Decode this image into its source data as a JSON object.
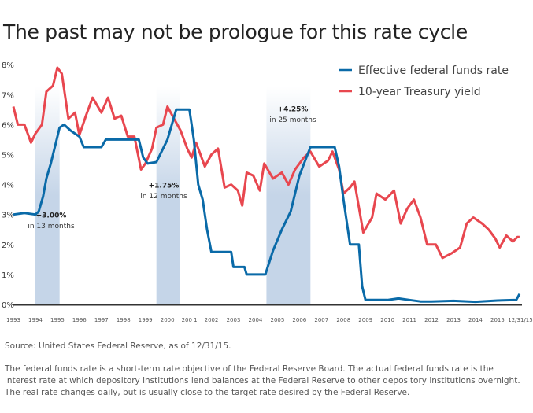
{
  "title": "The past may not be prologue for this rate cycle",
  "chart_data": {
    "type": "line",
    "title": "The past may not be prologue for this rate cycle",
    "xlabel": "",
    "ylabel": "",
    "xlim": [
      1993,
      2016
    ],
    "ylim": [
      0,
      8
    ],
    "y_ticks": [
      "0%",
      "1%",
      "2%",
      "3%",
      "4%",
      "5%",
      "6%",
      "7%",
      "8%"
    ],
    "x_ticks": [
      "1993",
      "1994",
      "1995",
      "1996",
      "1997",
      "1998",
      "1999",
      "2000",
      "200 1",
      "2002",
      "2003",
      "2004",
      "2005",
      "2006",
      "2007",
      "2008",
      "2009",
      "2010",
      "2011",
      "2012",
      "2013",
      "2014",
      "2015",
      "12/31/15"
    ],
    "grid": false,
    "legend_position": "top-right",
    "series": [
      {
        "name": "Effective federal funds rate",
        "color": "#0a6aa8",
        "x": [
          1993.0,
          1993.5,
          1994.0,
          1994.15,
          1994.35,
          1994.5,
          1994.7,
          1994.9,
          1995.1,
          1995.3,
          1995.6,
          1996.0,
          1996.2,
          1996.6,
          1997.0,
          1997.2,
          1997.6,
          1998.0,
          1998.7,
          1998.9,
          1999.1,
          1999.5,
          1999.8,
          2000.0,
          2000.4,
          2001.0,
          2001.2,
          2001.4,
          2001.6,
          2001.8,
          2002.0,
          2002.9,
          2003.0,
          2003.5,
          2003.6,
          2004.45,
          2004.8,
          2005.2,
          2005.6,
          2006.0,
          2006.5,
          2007.6,
          2007.8,
          2008.0,
          2008.3,
          2008.7,
          2008.85,
          2009.0,
          2009.5,
          2010.0,
          2010.5,
          2011.0,
          2011.5,
          2012.0,
          2013.0,
          2014.0,
          2015.0,
          2015.85,
          2016.0
        ],
        "values": [
          3.0,
          3.05,
          3.0,
          3.1,
          3.6,
          4.2,
          4.7,
          5.3,
          5.9,
          6.0,
          5.8,
          5.6,
          5.25,
          5.25,
          5.25,
          5.5,
          5.5,
          5.5,
          5.5,
          4.9,
          4.7,
          4.75,
          5.2,
          5.5,
          6.5,
          6.5,
          5.5,
          4.0,
          3.5,
          2.5,
          1.75,
          1.75,
          1.25,
          1.25,
          1.0,
          1.0,
          1.8,
          2.5,
          3.1,
          4.3,
          5.25,
          5.25,
          4.6,
          3.5,
          2.0,
          2.0,
          0.6,
          0.15,
          0.15,
          0.15,
          0.2,
          0.15,
          0.1,
          0.1,
          0.12,
          0.09,
          0.13,
          0.15,
          0.35
        ]
      },
      {
        "name": "10-year Treasury yield",
        "color": "#e8474f",
        "x": [
          1993.0,
          1993.2,
          1993.5,
          1993.8,
          1994.0,
          1994.3,
          1994.5,
          1994.8,
          1995.0,
          1995.2,
          1995.5,
          1995.8,
          1996.0,
          1996.3,
          1996.6,
          1997.0,
          1997.3,
          1997.6,
          1997.9,
          1998.2,
          1998.5,
          1998.8,
          1999.0,
          1999.3,
          1999.5,
          1999.8,
          2000.0,
          2000.3,
          2000.6,
          2000.9,
          2001.1,
          2001.3,
          2001.7,
          2002.0,
          2002.3,
          2002.6,
          2002.9,
          2003.2,
          2003.4,
          2003.6,
          2003.9,
          2004.2,
          2004.4,
          2004.8,
          2005.2,
          2005.5,
          2005.8,
          2006.2,
          2006.5,
          2006.9,
          2007.3,
          2007.5,
          2007.8,
          2008.0,
          2008.3,
          2008.5,
          2008.9,
          2009.3,
          2009.5,
          2009.9,
          2010.3,
          2010.6,
          2010.9,
          2011.2,
          2011.5,
          2011.8,
          2012.2,
          2012.5,
          2012.9,
          2013.3,
          2013.6,
          2013.9,
          2014.3,
          2014.6,
          2014.9,
          2015.1,
          2015.4,
          2015.7,
          2015.9,
          2016.0
        ],
        "values": [
          6.6,
          6.0,
          6.0,
          5.4,
          5.7,
          6.0,
          7.1,
          7.3,
          7.9,
          7.7,
          6.2,
          6.4,
          5.65,
          6.3,
          6.9,
          6.4,
          6.9,
          6.2,
          6.3,
          5.6,
          5.6,
          4.5,
          4.7,
          5.2,
          5.9,
          6.0,
          6.6,
          6.2,
          5.8,
          5.2,
          4.9,
          5.4,
          4.6,
          5.0,
          5.2,
          3.9,
          4.0,
          3.8,
          3.3,
          4.4,
          4.3,
          3.8,
          4.7,
          4.2,
          4.4,
          4.0,
          4.5,
          4.9,
          5.1,
          4.6,
          4.8,
          5.1,
          4.5,
          3.7,
          3.9,
          4.1,
          2.4,
          2.9,
          3.7,
          3.5,
          3.8,
          2.7,
          3.2,
          3.5,
          2.9,
          2.0,
          2.0,
          1.55,
          1.7,
          1.9,
          2.7,
          2.9,
          2.7,
          2.5,
          2.2,
          1.9,
          2.3,
          2.1,
          2.25,
          2.25
        ]
      }
    ],
    "shaded_periods": [
      {
        "start": 1994.0,
        "end": 1995.1,
        "label": "+3.00%",
        "sublabel": "in 13 months"
      },
      {
        "start": 1999.5,
        "end": 2000.55,
        "label": "+1.75%",
        "sublabel": "in 12 months"
      },
      {
        "start": 2004.5,
        "end": 2006.5,
        "label": "+4.25%",
        "sublabel": "in 25 months"
      }
    ]
  },
  "source": "Source: United States Federal Reserve, as of 12/31/15.",
  "note": "The federal funds rate is a short-term rate objective of the Federal Reserve Board. The actual federal funds rate is the interest rate at which depository institutions lend  balances at the Federal Reserve to other depository institutions overnight. The real rate changes daily, but is usually close to the target rate desired by the Federal Reserve.",
  "colors": {
    "band": "#c5d5e8",
    "axis": "#333333"
  }
}
